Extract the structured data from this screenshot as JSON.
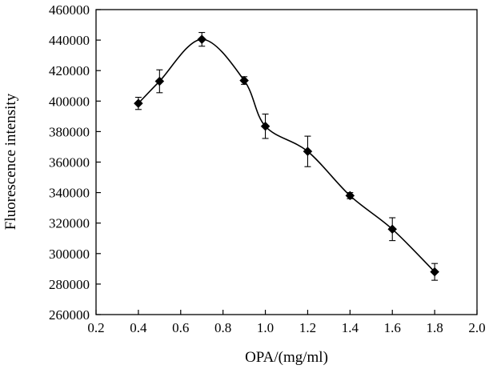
{
  "chart_data": {
    "type": "line",
    "title": "",
    "xlabel": "OPA/(mg/ml)",
    "ylabel": "Fluorescence intensity",
    "xlim": [
      0.2,
      2.0
    ],
    "ylim": [
      260000,
      460000
    ],
    "x_ticks": [
      "0.2",
      "0.4",
      "0.6",
      "0.8",
      "1.0",
      "1.2",
      "1.4",
      "1.6",
      "1.8",
      "2.0"
    ],
    "y_ticks": [
      "260000",
      "280000",
      "300000",
      "320000",
      "340000",
      "360000",
      "380000",
      "400000",
      "420000",
      "440000",
      "460000"
    ],
    "grid": false,
    "marker": "diamond",
    "smooth": true,
    "series": [
      {
        "name": "Fluorescence intensity",
        "x": [
          0.4,
          0.5,
          0.7,
          0.9,
          1.0,
          1.2,
          1.4,
          1.6,
          1.8
        ],
        "y": [
          398500,
          413000,
          440500,
          413500,
          383500,
          367000,
          338000,
          316000,
          288000
        ],
        "error": [
          4000,
          7500,
          4500,
          2500,
          8000,
          10000,
          2000,
          7500,
          5500
        ]
      }
    ]
  }
}
